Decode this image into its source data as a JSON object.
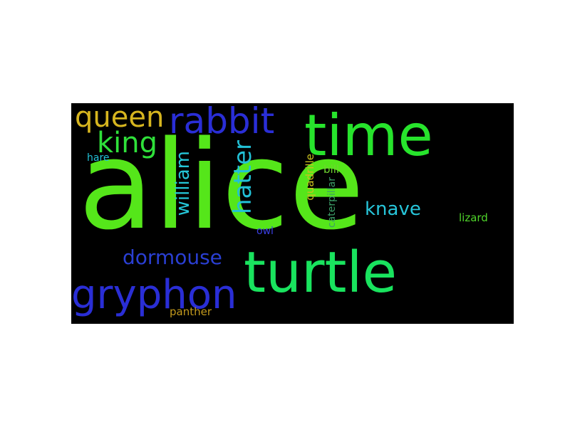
{
  "cloud": {
    "background": "#000000",
    "words": [
      {
        "text": "alice",
        "color": "#55e61a",
        "orientation": "horizontal"
      },
      {
        "text": "time",
        "color": "#27e42c",
        "orientation": "horizontal"
      },
      {
        "text": "turtle",
        "color": "#19e35e",
        "orientation": "horizontal"
      },
      {
        "text": "rabbit",
        "color": "#2a2ed6",
        "orientation": "horizontal"
      },
      {
        "text": "gryphon",
        "color": "#2a2ed6",
        "orientation": "horizontal"
      },
      {
        "text": "queen",
        "color": "#d6b51f",
        "orientation": "horizontal"
      },
      {
        "text": "king",
        "color": "#2fe03a",
        "orientation": "horizontal"
      },
      {
        "text": "hatter",
        "color": "#22c1d6",
        "orientation": "vertical"
      },
      {
        "text": "william",
        "color": "#25c6d8",
        "orientation": "vertical"
      },
      {
        "text": "knave",
        "color": "#27c5da",
        "orientation": "horizontal"
      },
      {
        "text": "dormouse",
        "color": "#2a3fd3",
        "orientation": "horizontal"
      },
      {
        "text": "hare",
        "color": "#22c1d6",
        "orientation": "horizontal"
      },
      {
        "text": "owl",
        "color": "#3b3fe3",
        "orientation": "horizontal"
      },
      {
        "text": "quadrille",
        "color": "#c9c21e",
        "orientation": "vertical"
      },
      {
        "text": "caterpillar",
        "color": "#3c9e68",
        "orientation": "vertical"
      },
      {
        "text": "bill",
        "color": "#6fd430",
        "orientation": "horizontal"
      },
      {
        "text": "lizard",
        "color": "#4fd42a",
        "orientation": "horizontal"
      },
      {
        "text": "panther",
        "color": "#c39a1d",
        "orientation": "horizontal"
      }
    ]
  }
}
